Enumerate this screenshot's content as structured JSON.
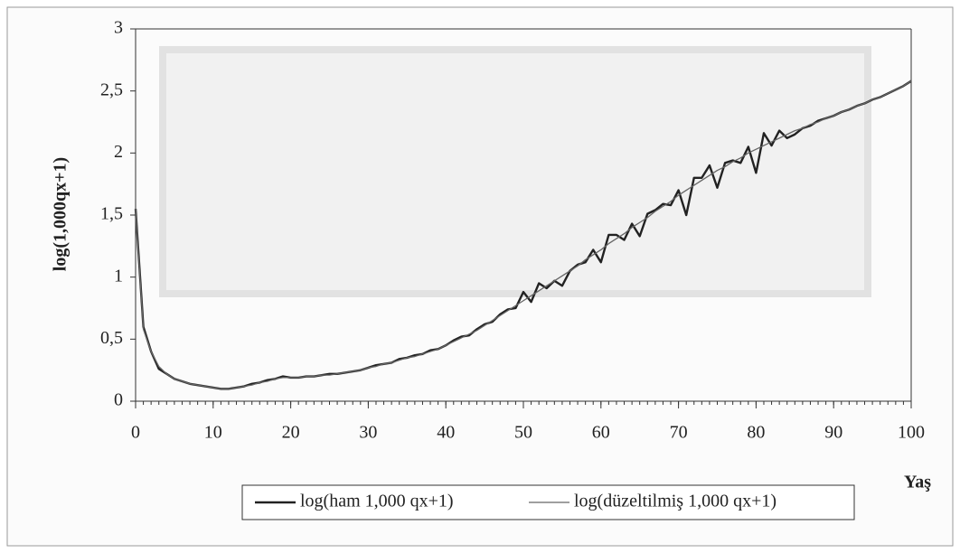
{
  "chart_data": {
    "type": "line",
    "y_label": "log(1,000qx+1)",
    "x_label": "Yaş",
    "x": [
      0,
      1,
      2,
      3,
      4,
      5,
      6,
      7,
      8,
      9,
      10,
      11,
      12,
      13,
      14,
      15,
      16,
      17,
      18,
      19,
      20,
      21,
      22,
      23,
      24,
      25,
      26,
      27,
      28,
      29,
      30,
      31,
      32,
      33,
      34,
      35,
      36,
      37,
      38,
      39,
      40,
      41,
      42,
      43,
      44,
      45,
      46,
      47,
      48,
      49,
      50,
      51,
      52,
      53,
      54,
      55,
      56,
      57,
      58,
      59,
      60,
      61,
      62,
      63,
      64,
      65,
      66,
      67,
      68,
      69,
      70,
      71,
      72,
      73,
      74,
      75,
      76,
      77,
      78,
      79,
      80,
      81,
      82,
      83,
      84,
      85,
      86,
      87,
      88,
      89,
      90,
      91,
      92,
      93,
      94,
      95,
      96,
      97,
      98,
      99,
      100
    ],
    "series": [
      {
        "name": "log(ham 1,000 qx+1)",
        "color": "#222222",
        "values": [
          1.55,
          0.6,
          0.4,
          0.26,
          0.22,
          0.18,
          0.16,
          0.14,
          0.13,
          0.12,
          0.11,
          0.1,
          0.1,
          0.11,
          0.12,
          0.14,
          0.15,
          0.17,
          0.18,
          0.2,
          0.19,
          0.19,
          0.2,
          0.2,
          0.21,
          0.22,
          0.22,
          0.23,
          0.24,
          0.25,
          0.27,
          0.29,
          0.3,
          0.31,
          0.34,
          0.35,
          0.37,
          0.38,
          0.41,
          0.42,
          0.45,
          0.49,
          0.52,
          0.53,
          0.58,
          0.62,
          0.64,
          0.7,
          0.74,
          0.75,
          0.88,
          0.8,
          0.95,
          0.91,
          0.97,
          0.93,
          1.05,
          1.1,
          1.12,
          1.22,
          1.12,
          1.34,
          1.34,
          1.3,
          1.43,
          1.33,
          1.51,
          1.54,
          1.59,
          1.58,
          1.7,
          1.5,
          1.8,
          1.8,
          1.9,
          1.72,
          1.92,
          1.94,
          1.92,
          2.05,
          1.84,
          2.16,
          2.06,
          2.18,
          2.12,
          2.15,
          2.2,
          2.22,
          2.26,
          2.28,
          2.3,
          2.33,
          2.35,
          2.38,
          2.4,
          2.43,
          2.45,
          2.48,
          2.51,
          2.54,
          2.58
        ]
      },
      {
        "name": "log(düzeltilmiş 1,000 qx+1)",
        "color": "#666666",
        "values": [
          1.55,
          0.58,
          0.4,
          0.28,
          0.22,
          0.18,
          0.16,
          0.14,
          0.13,
          0.12,
          0.11,
          0.1,
          0.1,
          0.11,
          0.12,
          0.13,
          0.15,
          0.16,
          0.18,
          0.19,
          0.19,
          0.19,
          0.2,
          0.2,
          0.21,
          0.21,
          0.22,
          0.23,
          0.24,
          0.25,
          0.27,
          0.28,
          0.3,
          0.31,
          0.33,
          0.35,
          0.36,
          0.38,
          0.4,
          0.42,
          0.45,
          0.48,
          0.51,
          0.54,
          0.57,
          0.61,
          0.65,
          0.69,
          0.73,
          0.77,
          0.81,
          0.85,
          0.89,
          0.93,
          0.97,
          1.01,
          1.05,
          1.09,
          1.14,
          1.18,
          1.22,
          1.27,
          1.31,
          1.35,
          1.4,
          1.44,
          1.48,
          1.53,
          1.57,
          1.61,
          1.66,
          1.7,
          1.74,
          1.78,
          1.82,
          1.86,
          1.89,
          1.93,
          1.96,
          2.0,
          2.03,
          2.06,
          2.09,
          2.12,
          2.15,
          2.18,
          2.2,
          2.23,
          2.25,
          2.28,
          2.3,
          2.33,
          2.35,
          2.38,
          2.4,
          2.43,
          2.45,
          2.48,
          2.51,
          2.54,
          2.58
        ]
      }
    ],
    "xlim": [
      0,
      100
    ],
    "xticks": [
      0,
      10,
      20,
      30,
      40,
      50,
      60,
      70,
      80,
      90,
      100
    ],
    "ylim": [
      0,
      3
    ],
    "yticks": [
      0,
      {
        "value": 0.5,
        "label": "0,5"
      },
      1,
      {
        "value": 1.5,
        "label": "1,5"
      },
      2,
      {
        "value": 2.5,
        "label": "2,5"
      },
      3
    ]
  }
}
